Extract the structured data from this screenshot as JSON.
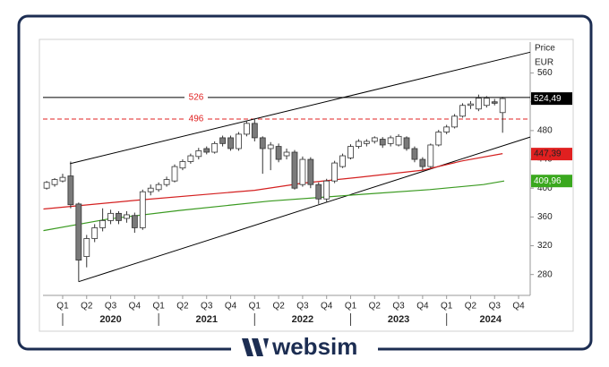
{
  "chart_data": {
    "type": "candlestick",
    "y_label": "Price",
    "y_unit": "EUR",
    "x": [
      -2,
      -1,
      0,
      1,
      2,
      3,
      4,
      5,
      6,
      7,
      8,
      9,
      10,
      11,
      12,
      13,
      14,
      15,
      16,
      17,
      18,
      19,
      20,
      21,
      22,
      23,
      24,
      25,
      26,
      27,
      28,
      29,
      30,
      31,
      32,
      33,
      34,
      35,
      36,
      37,
      38,
      39,
      40,
      41,
      42,
      43,
      44,
      45,
      46,
      47,
      48,
      49,
      50,
      51,
      52,
      53,
      54,
      55
    ],
    "open": [
      400,
      405,
      410,
      417,
      378,
      305,
      330,
      345,
      355,
      365,
      358,
      362,
      345,
      395,
      398,
      405,
      410,
      428,
      437,
      444,
      455,
      450,
      470,
      470,
      455,
      475,
      490,
      470,
      455,
      458,
      445,
      450,
      405,
      440,
      405,
      385,
      410,
      430,
      442,
      458,
      462,
      465,
      468,
      462,
      460,
      470,
      455,
      440,
      430,
      460,
      478,
      485,
      500,
      515,
      510,
      515,
      520,
      505
    ],
    "high": [
      410,
      414,
      420,
      437,
      380,
      335,
      350,
      372,
      370,
      368,
      368,
      366,
      398,
      405,
      408,
      416,
      433,
      440,
      448,
      456,
      458,
      465,
      473,
      473,
      478,
      494,
      497,
      472,
      464,
      462,
      455,
      453,
      444,
      443,
      408,
      413,
      438,
      448,
      461,
      468,
      468,
      472,
      471,
      473,
      475,
      472,
      458,
      443,
      462,
      481,
      488,
      503,
      518,
      521,
      530,
      528,
      524,
      527
    ],
    "low": [
      398,
      402,
      408,
      372,
      270,
      290,
      325,
      340,
      350,
      350,
      352,
      338,
      342,
      390,
      395,
      402,
      408,
      425,
      434,
      440,
      447,
      448,
      458,
      452,
      452,
      472,
      465,
      420,
      425,
      436,
      440,
      398,
      402,
      400,
      378,
      380,
      407,
      428,
      440,
      455,
      458,
      462,
      456,
      458,
      458,
      452,
      436,
      425,
      428,
      458,
      475,
      483,
      498,
      510,
      507,
      512,
      515,
      477
    ],
    "close": [
      408,
      412,
      415,
      377,
      300,
      330,
      345,
      355,
      365,
      355,
      363,
      345,
      395,
      400,
      405,
      412,
      430,
      437,
      445,
      452,
      450,
      462,
      462,
      455,
      475,
      490,
      470,
      455,
      460,
      440,
      450,
      400,
      440,
      405,
      385,
      410,
      435,
      445,
      458,
      465,
      465,
      470,
      460,
      470,
      472,
      455,
      440,
      430,
      460,
      478,
      485,
      500,
      515,
      517,
      525,
      525,
      518,
      524.49
    ],
    "up_color": "#ffffff",
    "down_color": "#7a7a7a",
    "xlim": [
      -2.46,
      58.45
    ],
    "ylim": [
      251,
      603
    ],
    "yticks": [
      280,
      320,
      360,
      400,
      440,
      480,
      520,
      560
    ],
    "xticks": [
      {
        "value": 0,
        "label": "Q1"
      },
      {
        "value": 3,
        "label": "Q2"
      },
      {
        "value": 6,
        "label": "Q3"
      },
      {
        "value": 9,
        "label": "Q4"
      },
      {
        "value": 12,
        "label": "Q1"
      },
      {
        "value": 15,
        "label": "Q2"
      },
      {
        "value": 18,
        "label": "Q3"
      },
      {
        "value": 21,
        "label": "Q4"
      },
      {
        "value": 24,
        "label": "Q1"
      },
      {
        "value": 27,
        "label": "Q2"
      },
      {
        "value": 30,
        "label": "Q3"
      },
      {
        "value": 33,
        "label": "Q4"
      },
      {
        "value": 36,
        "label": "Q1"
      },
      {
        "value": 39,
        "label": "Q2"
      },
      {
        "value": 42,
        "label": "Q3"
      },
      {
        "value": 45,
        "label": "Q4"
      },
      {
        "value": 48,
        "label": "Q1"
      },
      {
        "value": 51,
        "label": "Q2"
      },
      {
        "value": 54,
        "label": "Q3"
      },
      {
        "value": 57,
        "label": "Q4"
      }
    ],
    "years": [
      {
        "value": 6,
        "label": "2020"
      },
      {
        "value": 18,
        "label": "2021"
      },
      {
        "value": 30,
        "label": "2022"
      },
      {
        "value": 42,
        "label": "2023"
      },
      {
        "value": 53.5,
        "label": "2024"
      }
    ],
    "levels": [
      {
        "value": 526,
        "color": "#000000",
        "label_color": "#e02020",
        "dashed": false
      },
      {
        "value": 496,
        "color": "#e02020",
        "label_color": "#e02020",
        "dashed": true
      }
    ],
    "trendlines": [
      {
        "x": [
          0.9,
          58.45
        ],
        "values": [
          434,
          589
        ],
        "color": "#000000"
      },
      {
        "x": [
          2,
          58.45
        ],
        "values": [
          270,
          471
        ],
        "color": "#000000"
      }
    ],
    "moving_averages": [
      {
        "color": "#d42020",
        "x": [
          -2.4,
          9,
          24,
          30,
          37,
          45,
          50,
          55
        ],
        "values": [
          371,
          383,
          397,
          407,
          415,
          425,
          438,
          448
        ]
      },
      {
        "color": "#3a9a20",
        "x": [
          -2.4,
          5.6,
          14.6,
          25.8,
          37,
          45.9,
          52.6,
          55.2
        ],
        "values": [
          341,
          357,
          369,
          382,
          391,
          398,
          405,
          410
        ]
      }
    ],
    "last_values": [
      {
        "value": 524.49,
        "label": "524,49",
        "color": "#000000",
        "text_color": "#ffffff"
      },
      {
        "value": 447.39,
        "label": "447,39",
        "color": "#e02020",
        "text_color": "#222222"
      },
      {
        "value": 409.96,
        "label": "409,96",
        "color": "#3aa81e",
        "text_color": "#ffffff"
      }
    ]
  },
  "brand": "websim"
}
